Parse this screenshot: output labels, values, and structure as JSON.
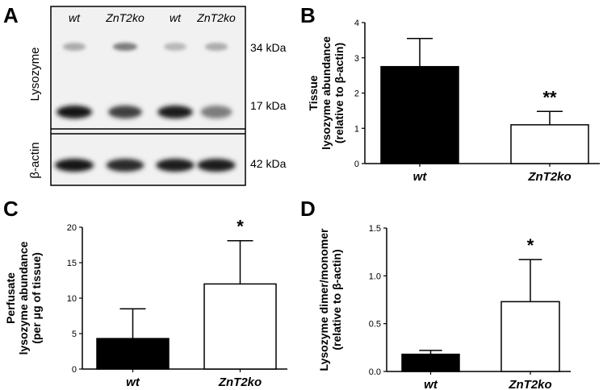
{
  "panels": {
    "a": {
      "letter": "A"
    },
    "b": {
      "letter": "B"
    },
    "c": {
      "letter": "C"
    },
    "d": {
      "letter": "D"
    }
  },
  "blot": {
    "lanes": [
      "wt",
      "ZnT2ko",
      "wt",
      "ZnT2ko"
    ],
    "upper_label": "Lysozyme",
    "lower_label": "β-actin",
    "mw_markers": [
      "34 kDa",
      "17 kDa",
      "42 kDa"
    ],
    "band_intensity": {
      "lysozyme_34": [
        0.35,
        0.55,
        0.3,
        0.35
      ],
      "lysozyme_17": [
        1.0,
        0.8,
        0.95,
        0.55
      ],
      "actin_42": [
        1.0,
        0.9,
        0.95,
        0.95
      ]
    }
  },
  "colors": {
    "wt_fill": "#000000",
    "znt2ko_fill": "#ffffff",
    "stroke": "#000000"
  },
  "chart_data": [
    {
      "panel": "B",
      "type": "bar",
      "categories": [
        "wt",
        "ZnT2ko"
      ],
      "values": [
        2.75,
        1.1
      ],
      "errors": [
        0.8,
        0.38
      ],
      "ylabel_lines": [
        "Tissue",
        "lysozyme abundance",
        "(relative to β-actin)"
      ],
      "ylim": [
        0,
        4
      ],
      "yticks": [
        "0",
        "1",
        "2",
        "3",
        "4"
      ],
      "significance": [
        "",
        "**"
      ]
    },
    {
      "panel": "C",
      "type": "bar",
      "categories": [
        "wt",
        "ZnT2ko"
      ],
      "values": [
        4.3,
        12.0
      ],
      "errors": [
        4.2,
        6.1
      ],
      "ylabel_lines": [
        "Perfusate",
        "lysozyme abundance",
        "(per μg of tissue)"
      ],
      "ylim": [
        0,
        20
      ],
      "yticks": [
        "0",
        "5",
        "10",
        "15",
        "20"
      ],
      "significance": [
        "",
        "*"
      ]
    },
    {
      "panel": "D",
      "type": "bar",
      "categories": [
        "wt",
        "ZnT2ko"
      ],
      "values": [
        0.18,
        0.73
      ],
      "errors": [
        0.04,
        0.44
      ],
      "ylabel_lines": [
        "Lysozyme dimer/monomer",
        "(relative to β-actin)"
      ],
      "ylim": [
        0,
        1.5
      ],
      "yticks": [
        "0.0",
        "0.5",
        "1.0",
        "1.5"
      ],
      "significance": [
        "",
        "*"
      ]
    }
  ]
}
